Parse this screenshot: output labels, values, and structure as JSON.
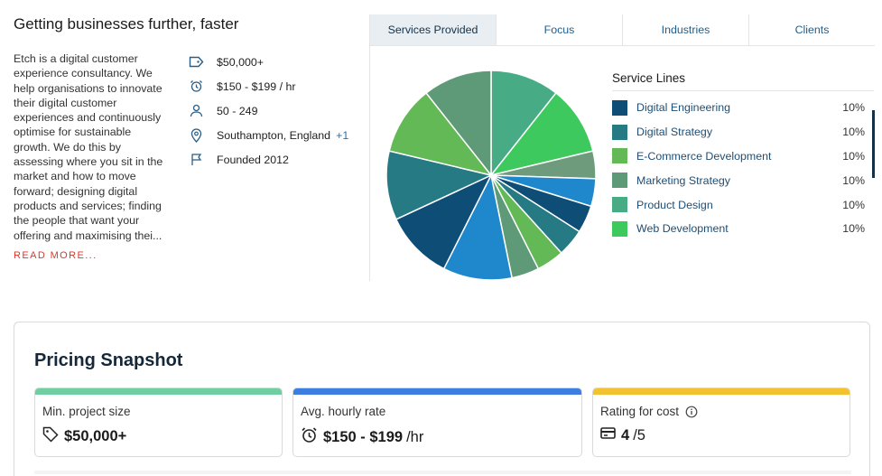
{
  "profile": {
    "headline": "Getting businesses further, faster",
    "description": "Etch is a digital customer experience consultancy. We help organisations to innovate their digital customer experiences and continuously optimise for sustainable growth. We do this by assessing where you sit in the market and how to move forward; designing digital products and services; finding the people that want your offering and maximising thei...",
    "read_more": "READ MORE...",
    "facts": {
      "min_project": "$50,000+",
      "hourly_rate": "$150 - $199 / hr",
      "employees": "50 - 249",
      "location": "Southampton, England",
      "location_extra": "+1",
      "founded": "Founded 2012"
    }
  },
  "tabs": [
    {
      "label": "Services Provided",
      "active": true
    },
    {
      "label": "Focus",
      "active": false
    },
    {
      "label": "Industries",
      "active": false
    },
    {
      "label": "Clients",
      "active": false
    }
  ],
  "legend": {
    "title": "Service Lines",
    "items": [
      {
        "label": "Digital Engineering",
        "pct": "10%",
        "color": "#0e4d75"
      },
      {
        "label": "Digital Strategy",
        "pct": "10%",
        "color": "#257a84"
      },
      {
        "label": "E-Commerce Development",
        "pct": "10%",
        "color": "#62b955"
      },
      {
        "label": "Marketing Strategy",
        "pct": "10%",
        "color": "#5e9a78"
      },
      {
        "label": "Product Design",
        "pct": "10%",
        "color": "#47ab86"
      },
      {
        "label": "Web Development",
        "pct": "10%",
        "color": "#3ec95e"
      }
    ]
  },
  "chart_data": {
    "type": "pie",
    "slices": [
      {
        "value": 10,
        "color": "#47ab86"
      },
      {
        "value": 10,
        "color": "#3ec95e"
      },
      {
        "value": 4,
        "color": "#6e9b7b"
      },
      {
        "value": 4,
        "color": "#1f87cc"
      },
      {
        "value": 4,
        "color": "#0e4d75"
      },
      {
        "value": 4,
        "color": "#257a84"
      },
      {
        "value": 4,
        "color": "#62b955"
      },
      {
        "value": 4,
        "color": "#5e9a78"
      },
      {
        "value": 10,
        "color": "#1f87cc"
      },
      {
        "value": 10,
        "color": "#0e4d75"
      },
      {
        "value": 10,
        "color": "#257a84"
      },
      {
        "value": 10,
        "color": "#62b955"
      },
      {
        "value": 10,
        "color": "#5e9a78"
      }
    ]
  },
  "pricing": {
    "title": "Pricing Snapshot",
    "cards": [
      {
        "label": "Min. project size",
        "value": "$50,000+",
        "unit": "",
        "color": "#6fcfa2"
      },
      {
        "label": "Avg. hourly rate",
        "value": "$150 - $199",
        "unit": "/hr",
        "color": "#3c7fe0"
      },
      {
        "label": "Rating for cost",
        "value": "4",
        "unit": "/5",
        "color": "#f2c230"
      }
    ]
  }
}
